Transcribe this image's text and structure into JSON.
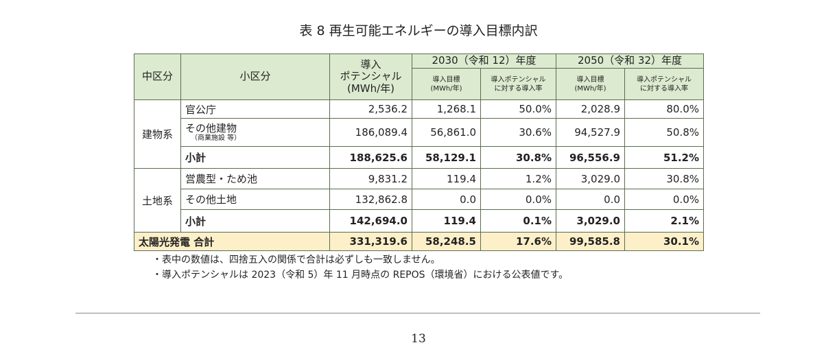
{
  "title": "表 8 再生可能エネルギーの導入目標内訳",
  "table": {
    "header": {
      "mid": "中区分",
      "sub": "小区分",
      "potential": [
        "導入",
        "ポテンシャル",
        "(MWh/年)"
      ],
      "years": [
        {
          "label": "2030（令和 12）年度",
          "target": [
            "導入目標",
            "(MWh/年)"
          ],
          "rate": [
            "導入ポテンシャル",
            "に対する導入率"
          ]
        },
        {
          "label": "2050（令和 32）年度",
          "target": [
            "導入目標",
            "(MWh/年)"
          ],
          "rate": [
            "導入ポテンシャル",
            "に対する導入率"
          ]
        }
      ]
    },
    "groups": [
      {
        "name": "建物系",
        "rows": [
          {
            "label": "官公庁",
            "values": [
              "2,536.2",
              "1,268.1",
              "50.0%",
              "2,028.9",
              "80.0%"
            ]
          },
          {
            "label": "その他建物",
            "note": "（商業施設 等）",
            "values": [
              "186,089.4",
              "56,861.0",
              "30.6%",
              "94,527.9",
              "50.8%"
            ]
          },
          {
            "label": "小計",
            "subtotal": true,
            "values": [
              "188,625.6",
              "58,129.1",
              "30.8%",
              "96,556.9",
              "51.2%"
            ]
          }
        ]
      },
      {
        "name": "土地系",
        "rows": [
          {
            "label": "営農型・ため池",
            "values": [
              "9,831.2",
              "119.4",
              "1.2%",
              "3,029.0",
              "30.8%"
            ]
          },
          {
            "label": "その他土地",
            "values": [
              "132,862.8",
              "0.0",
              "0.0%",
              "0.0",
              "0.0%"
            ]
          },
          {
            "label": "小計",
            "subtotal": true,
            "values": [
              "142,694.0",
              "119.4",
              "0.1%",
              "3,029.0",
              "2.1%"
            ]
          }
        ]
      }
    ],
    "total": {
      "label": "太陽光発電 合計",
      "values": [
        "331,319.6",
        "58,248.5",
        "17.6%",
        "99,585.8",
        "30.1%"
      ]
    }
  },
  "notes": [
    "・表中の数値は、四捨五入の関係で合計は必ずしも一致しません。",
    "・導入ポテンシャルは 2023（令和 5）年 11 月時点の REPOS（環境省）における公表値です。"
  ],
  "page_number": "13"
}
